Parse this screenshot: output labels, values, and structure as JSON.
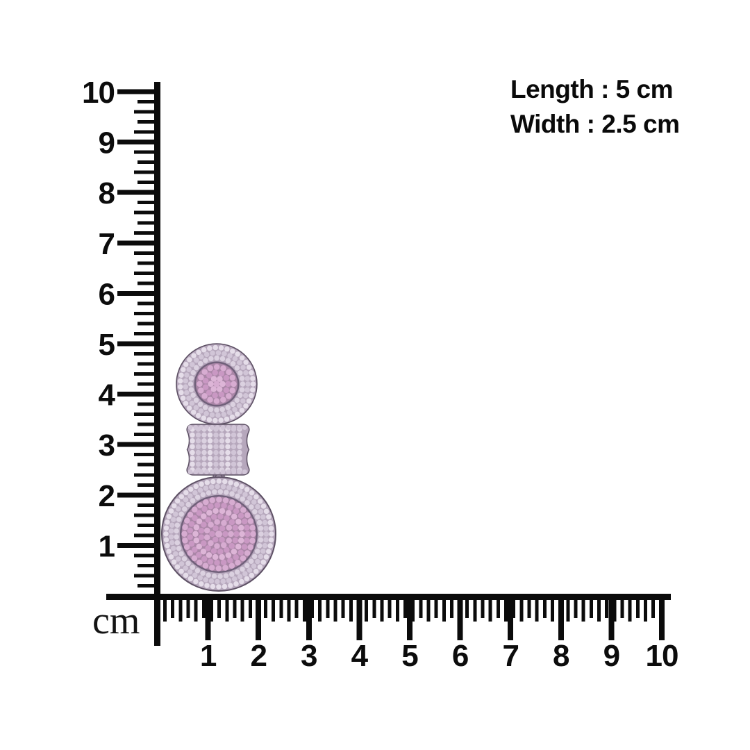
{
  "dimensions": {
    "length": "Length : 5 cm",
    "width": "Width : 2.5 cm"
  },
  "ruler": {
    "unit": "cm",
    "vertical": {
      "labels": [
        "1",
        "2",
        "3",
        "4",
        "5",
        "6",
        "7",
        "8",
        "9",
        "10"
      ],
      "range": [
        0,
        10
      ],
      "divisions_per_cm": 5
    },
    "horizontal": {
      "labels": [
        "1",
        "2",
        "3",
        "4",
        "5",
        "6",
        "7",
        "8",
        "9",
        "10"
      ],
      "range": [
        0,
        10
      ]
    },
    "color": "#0b0b0b"
  },
  "earring": {
    "colors": {
      "metal_base": "#b6a7bc",
      "outline": "#5d5064",
      "inner_base": "#70607a",
      "pink_base": "#aa86a7",
      "stones_lavender": [
        "#e5dde9",
        "#d1c5d7",
        "#dbd1e0"
      ],
      "stones_pink": [
        "#d7acd1",
        "#c998c3",
        "#ddb5d7"
      ]
    }
  },
  "text_color": "#0a0a0a"
}
